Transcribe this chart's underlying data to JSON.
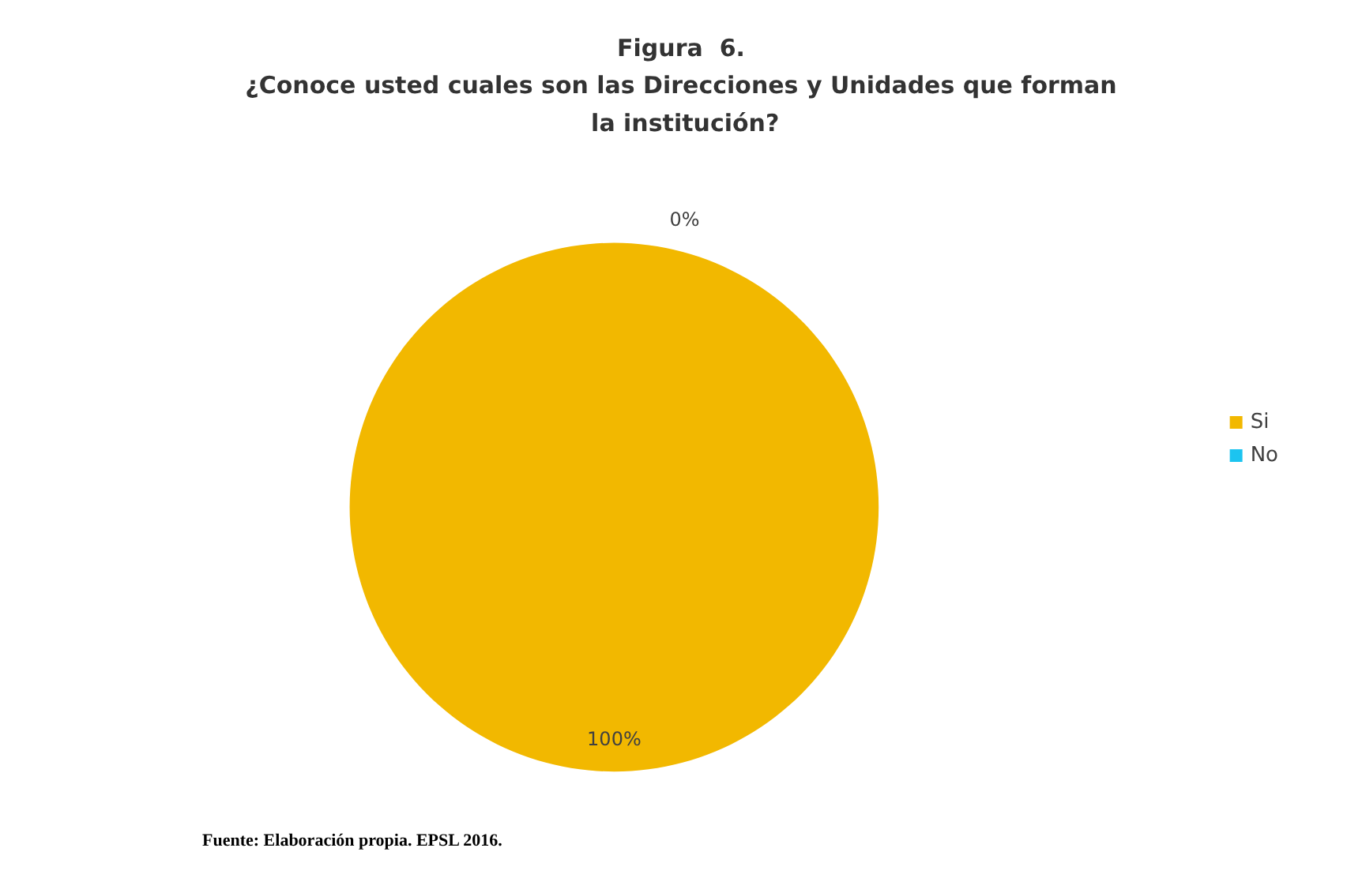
{
  "chart_data": {
    "type": "pie",
    "title": "Figura  6.",
    "subtitle": "¿Conoce usted cuales son las Direcciones y Unidades que forman la institución?",
    "categories": [
      "Si",
      "No"
    ],
    "values": [
      100,
      0
    ],
    "colors": [
      "#f2b800",
      "#1cc4f0"
    ],
    "value_labels": [
      "100%",
      "0%"
    ],
    "legend": "right",
    "annotations": [
      "Fuente: Elaboración propia. EPSL 2016."
    ]
  }
}
